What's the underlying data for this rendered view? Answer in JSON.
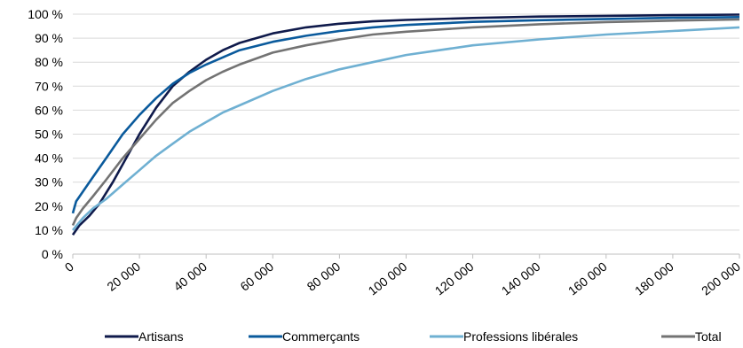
{
  "chart_data": {
    "type": "line",
    "title": "",
    "xlabel": "",
    "ylabel": "",
    "xlim": [
      0,
      200000
    ],
    "ylim": [
      0,
      100
    ],
    "x_ticks": [
      0,
      20000,
      40000,
      60000,
      80000,
      100000,
      120000,
      140000,
      160000,
      180000,
      200000
    ],
    "x_tick_labels": [
      "0",
      "20 000",
      "40 000",
      "60 000",
      "80 000",
      "100 000",
      "120 000",
      "140 000",
      "160 000",
      "180 000",
      "200 000"
    ],
    "y_ticks": [
      0,
      10,
      20,
      30,
      40,
      50,
      60,
      70,
      80,
      90,
      100
    ],
    "y_tick_labels": [
      "0 %",
      "10 %",
      "20 %",
      "30 %",
      "40 %",
      "50 %",
      "60 %",
      "70 %",
      "80 %",
      "90 %",
      "100 %"
    ],
    "grid": "horizontal",
    "legend_position": "bottom",
    "series": [
      {
        "name": "Artisans",
        "color": "#0f1a4b",
        "x": [
          0,
          2000,
          5000,
          8000,
          12000,
          16000,
          20000,
          25000,
          30000,
          35000,
          40000,
          45000,
          50000,
          60000,
          70000,
          80000,
          90000,
          100000,
          120000,
          140000,
          160000,
          180000,
          200000
        ],
        "y": [
          8,
          12,
          16,
          21,
          30,
          40,
          50,
          61,
          70,
          76,
          81,
          85,
          88,
          92,
          94.5,
          96,
          97,
          97.6,
          98.4,
          99,
          99.3,
          99.6,
          99.8
        ]
      },
      {
        "name": "Commerçants",
        "color": "#0a5a9c",
        "x": [
          0,
          1000,
          3000,
          6000,
          10000,
          15000,
          20000,
          25000,
          30000,
          35000,
          40000,
          45000,
          50000,
          60000,
          70000,
          80000,
          90000,
          100000,
          120000,
          140000,
          160000,
          180000,
          200000
        ],
        "y": [
          17,
          22,
          26,
          32,
          40,
          50,
          58,
          65,
          71,
          75.5,
          79,
          82,
          85,
          88.5,
          91,
          93,
          94.5,
          95.5,
          96.8,
          97.5,
          98,
          98.5,
          98.8
        ]
      },
      {
        "name": "Professions libérales",
        "color": "#6fb0d2",
        "x": [
          0,
          3000,
          6000,
          10000,
          15000,
          20000,
          25000,
          30000,
          35000,
          40000,
          45000,
          50000,
          60000,
          70000,
          80000,
          90000,
          100000,
          120000,
          140000,
          160000,
          180000,
          200000
        ],
        "y": [
          10,
          15,
          19,
          23,
          29,
          35,
          41,
          46,
          51,
          55,
          59,
          62,
          68,
          73,
          77,
          80,
          83,
          87,
          89.5,
          91.5,
          93,
          94.5
        ]
      },
      {
        "name": "Total",
        "color": "#737373",
        "x": [
          0,
          1000,
          3000,
          6000,
          10000,
          15000,
          20000,
          25000,
          30000,
          35000,
          40000,
          45000,
          50000,
          60000,
          70000,
          80000,
          90000,
          100000,
          120000,
          140000,
          160000,
          180000,
          200000
        ],
        "y": [
          12,
          15,
          19,
          24,
          31,
          40,
          48,
          56,
          63,
          68,
          72.5,
          76,
          79,
          84,
          87,
          89.5,
          91.5,
          92.7,
          94.5,
          95.8,
          96.7,
          97.3,
          97.8
        ]
      }
    ]
  }
}
